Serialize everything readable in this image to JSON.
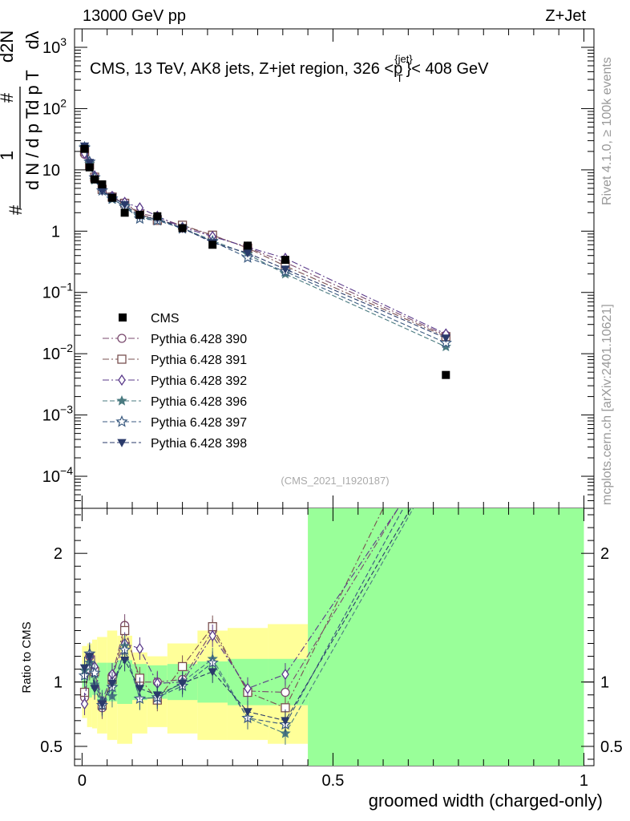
{
  "header": {
    "left": "13000 GeV pp",
    "right": "Z+Jet"
  },
  "side_labels": {
    "rivet": "Rivet 4.1.0, ≥ 100k events",
    "source": "mcplots.cern.ch [arXiv:2401.10621]"
  },
  "chart_data": [
    {
      "type": "scatter",
      "panel": "main",
      "title": "CMS, 13 TeV, AK8 jets, Z+jet region, 326 <p",
      "title_sup": "{jet}",
      "title_sub": "T",
      "title_tail": "}< 408 GeV",
      "ylabel_parts": [
        "#",
        "1",
        "d N / d p",
        "T",
        "#",
        "d p",
        "T",
        "d",
        "2",
        "N",
        "d",
        "λ"
      ],
      "yscale": "log",
      "ylim": [
        3e-05,
        2000
      ],
      "xlim": [
        -0.015,
        1.02
      ],
      "ytick_labels": [
        {
          "v": 0.0001,
          "base": "10",
          "exp": "−4"
        },
        {
          "v": 0.001,
          "base": "10",
          "exp": "−3"
        },
        {
          "v": 0.01,
          "base": "10",
          "exp": "−2"
        },
        {
          "v": 0.1,
          "base": "10",
          "exp": "−1"
        },
        {
          "v": 1,
          "base": "1",
          "exp": ""
        },
        {
          "v": 10,
          "base": "10",
          "exp": ""
        },
        {
          "v": 100,
          "base": "10",
          "exp": "2"
        },
        {
          "v": 1000,
          "base": "10",
          "exp": "3"
        }
      ],
      "watermark": "(CMS_2021_I1920187)",
      "legend_position": "center-left",
      "x": [
        0.005,
        0.015,
        0.025,
        0.04,
        0.06,
        0.085,
        0.115,
        0.15,
        0.2,
        0.26,
        0.33,
        0.405,
        0.725
      ],
      "data": {
        "name": "CMS",
        "values": [
          22,
          11,
          7.0,
          5.8,
          3.5,
          2.0,
          1.85,
          1.75,
          1.12,
          0.6,
          0.58,
          0.34,
          0.0045
        ]
      },
      "series": [
        {
          "name": "Pythia 6.428 390",
          "marker": "circle-open",
          "dash": "8,3,2,3",
          "color": "#7a4a6e",
          "values": [
            18,
            13,
            7.8,
            4.7,
            3.7,
            2.9,
            1.95,
            1.7,
            1.22,
            0.85,
            0.54,
            0.31,
            0.02
          ]
        },
        {
          "name": "Pythia 6.428 391",
          "marker": "square-open",
          "dash": "8,3,2,3",
          "color": "#7a5050",
          "values": [
            20,
            12,
            7.6,
            4.8,
            3.6,
            2.85,
            1.9,
            1.5,
            1.25,
            0.86,
            0.53,
            0.27,
            0.019
          ]
        },
        {
          "name": "Pythia 6.428 392",
          "marker": "diamond-open",
          "dash": "8,3,2,3",
          "color": "#5a3a8a",
          "values": [
            18.5,
            13.5,
            8.0,
            4.9,
            3.7,
            2.95,
            2.4,
            1.75,
            1.15,
            0.82,
            0.55,
            0.36,
            0.021
          ]
        },
        {
          "name": "Pythia 6.428 396",
          "marker": "star-filled",
          "dash": "6,3",
          "color": "#4a7a80",
          "values": [
            24,
            12.5,
            6.8,
            4.6,
            3.3,
            2.6,
            1.65,
            1.55,
            1.12,
            0.7,
            0.42,
            0.2,
            0.013
          ]
        },
        {
          "name": "Pythia 6.428 397",
          "marker": "star-open",
          "dash": "6,3",
          "color": "#3a5a80",
          "values": [
            23,
            13.5,
            7.5,
            4.6,
            3.4,
            2.5,
            1.6,
            1.5,
            1.1,
            0.68,
            0.37,
            0.22,
            0.015
          ]
        },
        {
          "name": "Pythia 6.428 398",
          "marker": "triangle-down-filled",
          "dash": "6,3",
          "color": "#2a3a6a",
          "values": [
            24.5,
            13.2,
            7.0,
            4.5,
            3.6,
            2.7,
            1.75,
            1.6,
            1.12,
            0.65,
            0.44,
            0.24,
            0.018
          ]
        }
      ]
    },
    {
      "type": "scatter",
      "panel": "ratio",
      "ylabel": "Ratio to CMS",
      "ylim": [
        0.35,
        2.35
      ],
      "xlim": [
        -0.015,
        1.02
      ],
      "xlabel": "groomed width (charged-only)",
      "xtick_labels": [
        {
          "v": 0,
          "label": "0"
        },
        {
          "v": 0.5,
          "label": "0.5"
        },
        {
          "v": 1,
          "label": "1"
        }
      ],
      "ytick_labels": [
        {
          "v": 0.5,
          "label": "0.5"
        },
        {
          "v": 1,
          "label": "1"
        },
        {
          "v": 2,
          "label": "2"
        }
      ],
      "band_edges": [
        0.0,
        0.01,
        0.02,
        0.03,
        0.05,
        0.07,
        0.1,
        0.13,
        0.17,
        0.23,
        0.29,
        0.37,
        0.45,
        1.0
      ],
      "band_stat": [
        [
          0.86,
          1.14
        ],
        [
          0.88,
          1.14
        ],
        [
          0.9,
          1.1
        ],
        [
          0.85,
          1.15
        ],
        [
          0.85,
          1.15
        ],
        [
          0.83,
          1.17
        ],
        [
          0.86,
          1.14
        ],
        [
          0.87,
          1.13
        ],
        [
          0.86,
          1.14
        ],
        [
          0.84,
          1.16
        ],
        [
          0.82,
          1.18
        ],
        [
          0.82,
          1.18
        ],
        [
          0.35,
          2.35
        ]
      ],
      "band_total": [
        [
          0.72,
          1.28
        ],
        [
          0.65,
          1.3
        ],
        [
          0.64,
          1.33
        ],
        [
          0.6,
          1.35
        ],
        [
          0.55,
          1.4
        ],
        [
          0.52,
          1.36
        ],
        [
          0.6,
          1.23
        ],
        [
          0.65,
          1.2
        ],
        [
          0.6,
          1.3
        ],
        [
          0.55,
          1.4
        ],
        [
          0.55,
          1.42
        ],
        [
          0.52,
          1.45
        ],
        [
          0.35,
          2.35
        ]
      ],
      "series": [
        {
          "name": "Pythia 6.428 390",
          "x": [
            0.005,
            0.015,
            0.025,
            0.04,
            0.06,
            0.085,
            0.115,
            0.15,
            0.2,
            0.26,
            0.33,
            0.405,
            0.63
          ],
          "values": [
            0.88,
            1.2,
            1.1,
            0.8,
            1.05,
            1.44,
            1.0,
            1.0,
            1.02,
            1.4,
            0.93,
            0.92,
            2.35
          ]
        },
        {
          "name": "Pythia 6.428 391",
          "x": [
            0.005,
            0.015,
            0.025,
            0.04,
            0.06,
            0.085,
            0.115,
            0.15,
            0.2,
            0.26,
            0.33,
            0.405,
            0.6
          ],
          "values": [
            0.92,
            1.1,
            1.08,
            0.82,
            1.02,
            1.4,
            1.03,
            0.86,
            1.12,
            1.43,
            0.92,
            0.8,
            2.35
          ]
        },
        {
          "name": "Pythia 6.428 392",
          "x": [
            0.005,
            0.015,
            0.025,
            0.04,
            0.06,
            0.085,
            0.115,
            0.15,
            0.2,
            0.26,
            0.33,
            0.405,
            0.63
          ],
          "values": [
            0.83,
            1.2,
            1.12,
            0.85,
            1.06,
            1.3,
            1.26,
            0.99,
            1.0,
            1.36,
            0.95,
            1.06,
            2.35
          ]
        },
        {
          "name": "Pythia 6.428 396",
          "x": [
            0.005,
            0.015,
            0.025,
            0.04,
            0.06,
            0.085,
            0.115,
            0.15,
            0.2,
            0.26,
            0.33,
            0.405,
            0.66
          ],
          "values": [
            1.09,
            1.15,
            0.98,
            0.85,
            0.89,
            1.28,
            0.87,
            0.88,
            1.0,
            1.18,
            0.72,
            0.6,
            2.35
          ]
        },
        {
          "name": "Pythia 6.428 397",
          "x": [
            0.005,
            0.015,
            0.025,
            0.04,
            0.06,
            0.085,
            0.115,
            0.15,
            0.2,
            0.26,
            0.33,
            0.405,
            0.64
          ],
          "values": [
            1.05,
            1.22,
            1.07,
            0.82,
            0.96,
            1.25,
            0.87,
            0.88,
            0.97,
            1.15,
            0.72,
            0.67,
            2.35
          ]
        },
        {
          "name": "Pythia 6.428 398",
          "x": [
            0.005,
            0.015,
            0.025,
            0.04,
            0.06,
            0.085,
            0.115,
            0.15,
            0.2,
            0.26,
            0.33,
            0.405,
            0.655
          ],
          "values": [
            1.11,
            1.2,
            0.95,
            0.83,
            0.99,
            1.17,
            0.95,
            0.9,
            0.99,
            1.08,
            0.77,
            0.7,
            2.35
          ]
        }
      ]
    }
  ]
}
